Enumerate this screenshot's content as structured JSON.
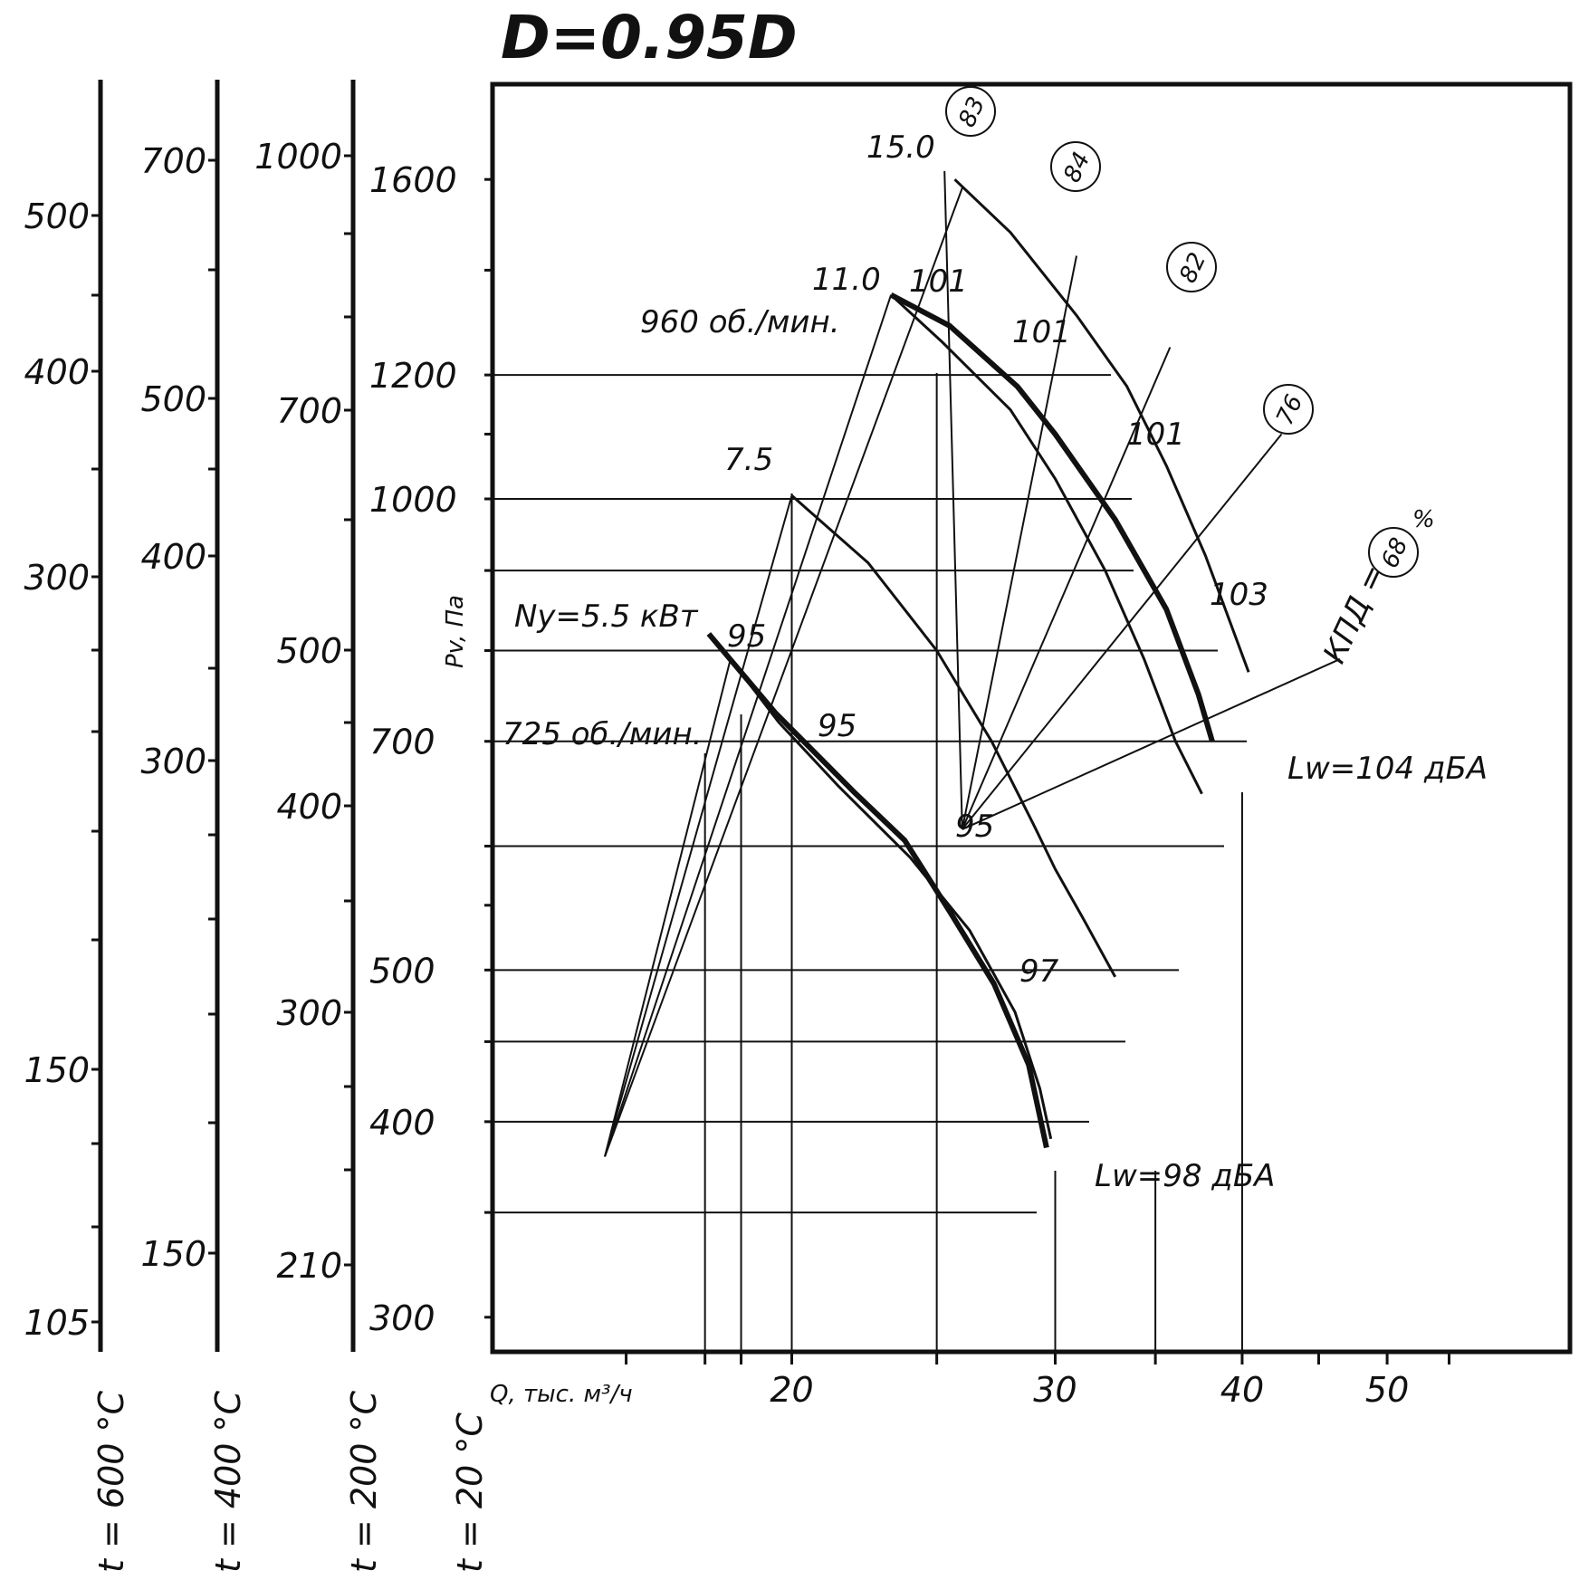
{
  "chart_data": {
    "type": "line",
    "title": "D=0.95D",
    "xlabel": "Q, тыс. м³/ч",
    "ylabel": "Pv, Па",
    "x_scale": "log",
    "y_scale": "log",
    "xlim": [
      14.8,
      56
    ],
    "ylim": [
      300,
      1830
    ],
    "x_ticks": [
      20,
      30,
      40,
      50
    ],
    "y_ticks": [
      300,
      400,
      500,
      700,
      1000,
      1200,
      1600
    ],
    "grid": true,
    "series": [
      {
        "name": "960 об./мин.",
        "style": "bold",
        "points": [
          [
            23.3,
            1350
          ],
          [
            25.5,
            1290
          ],
          [
            28.3,
            1180
          ],
          [
            30.0,
            1100
          ],
          [
            32.9,
            970
          ],
          [
            35.6,
            850
          ],
          [
            37.4,
            750
          ],
          [
            38.2,
            700
          ]
        ]
      },
      {
        "name": "725 об./мин.",
        "style": "bold",
        "points": [
          [
            17.6,
            820
          ],
          [
            19.5,
            730
          ],
          [
            22.0,
            650
          ],
          [
            23.8,
            605
          ],
          [
            25.5,
            545
          ],
          [
            27.3,
            490
          ],
          [
            28.8,
            435
          ],
          [
            29.6,
            385
          ]
        ]
      },
      {
        "name": "",
        "style": "thin",
        "points": [
          [
            25.7,
            1600
          ],
          [
            28.0,
            1480
          ],
          [
            31.0,
            1310
          ],
          [
            33.5,
            1180
          ],
          [
            35.6,
            1050
          ],
          [
            37.8,
            920
          ],
          [
            40.4,
            775
          ]
        ]
      },
      {
        "name": "",
        "style": "thin",
        "points": [
          [
            23.3,
            1350
          ],
          [
            25.2,
            1260
          ],
          [
            28.0,
            1140
          ],
          [
            30.0,
            1030
          ],
          [
            32.4,
            900
          ],
          [
            34.4,
            790
          ],
          [
            36.1,
            700
          ],
          [
            37.6,
            648
          ]
        ]
      },
      {
        "name": "",
        "style": "thin",
        "points": [
          [
            20.0,
            1005
          ],
          [
            22.5,
            910
          ],
          [
            25.0,
            800
          ],
          [
            27.2,
            700
          ],
          [
            29.0,
            620
          ],
          [
            30.0,
            580
          ],
          [
            31.3,
            540
          ],
          [
            32.9,
            495
          ]
        ]
      },
      {
        "name": "",
        "style": "thin",
        "points": [
          [
            18.2,
            790
          ],
          [
            19.6,
            720
          ],
          [
            21.5,
            655
          ],
          [
            24.0,
            590
          ],
          [
            26.3,
            530
          ],
          [
            28.2,
            470
          ],
          [
            29.3,
            420
          ],
          [
            29.8,
            390
          ]
        ]
      }
    ],
    "power_rays": [
      {
        "label": "15.0",
        "from": [
          15.0,
          380
        ],
        "to": [
          26.0,
          1580
        ]
      },
      {
        "label": "11.0",
        "from": [
          15.0,
          380
        ],
        "to": [
          23.3,
          1350
        ]
      },
      {
        "label": "7.5",
        "from": [
          15.0,
          380
        ],
        "to": [
          20.0,
          1005
        ]
      },
      {
        "label": "Ny=5.5 кВт",
        "from": [
          15.0,
          380
        ],
        "to": [
          18.2,
          790
        ]
      }
    ],
    "efficiency_rays": [
      {
        "label": "83",
        "from": [
          26.0,
          615
        ],
        "to": [
          25.3,
          1620
        ]
      },
      {
        "label": "84",
        "from": [
          26.0,
          615
        ],
        "to": [
          31.0,
          1430
        ]
      },
      {
        "label": "82",
        "from": [
          26.0,
          615
        ],
        "to": [
          35.8,
          1250
        ]
      },
      {
        "label": "76",
        "from": [
          26.0,
          615
        ],
        "to": [
          42.5,
          1100
        ]
      },
      {
        "label": "68",
        "from": [
          26.0,
          615
        ],
        "to": [
          46.5,
          790
        ]
      }
    ],
    "efficiency_label": "КПД =",
    "efficiency_unit": "%",
    "efficiency_circles": [
      "83",
      "84",
      "82",
      "76",
      "68"
    ],
    "noise_labels": [
      "101",
      "101",
      "101",
      "103",
      "95",
      "95",
      "95",
      "97"
    ],
    "series_labels": [
      "15.0",
      "11.0",
      "960 об./мин.",
      "7.5",
      "Ny=5.5 кВт",
      "725 об./мин."
    ],
    "noise_annotations": [
      "Lw=104 дБА",
      "Lw=98 дБА"
    ],
    "temperature_scales": [
      {
        "label": "t = 600 °C",
        "ticks": [
          "500",
          "400",
          "300",
          "150",
          "105"
        ]
      },
      {
        "label": "t = 400 °C",
        "ticks": [
          "700",
          "500",
          "400",
          "300",
          "150"
        ]
      },
      {
        "label": "t = 200 °C",
        "ticks": [
          "1000",
          "700",
          "500",
          "400",
          "300",
          "210"
        ]
      },
      {
        "label": "t = 20 °C",
        "ticks": [
          "1600",
          "1200",
          "1000",
          "700",
          "500",
          "400",
          "300"
        ]
      }
    ]
  }
}
